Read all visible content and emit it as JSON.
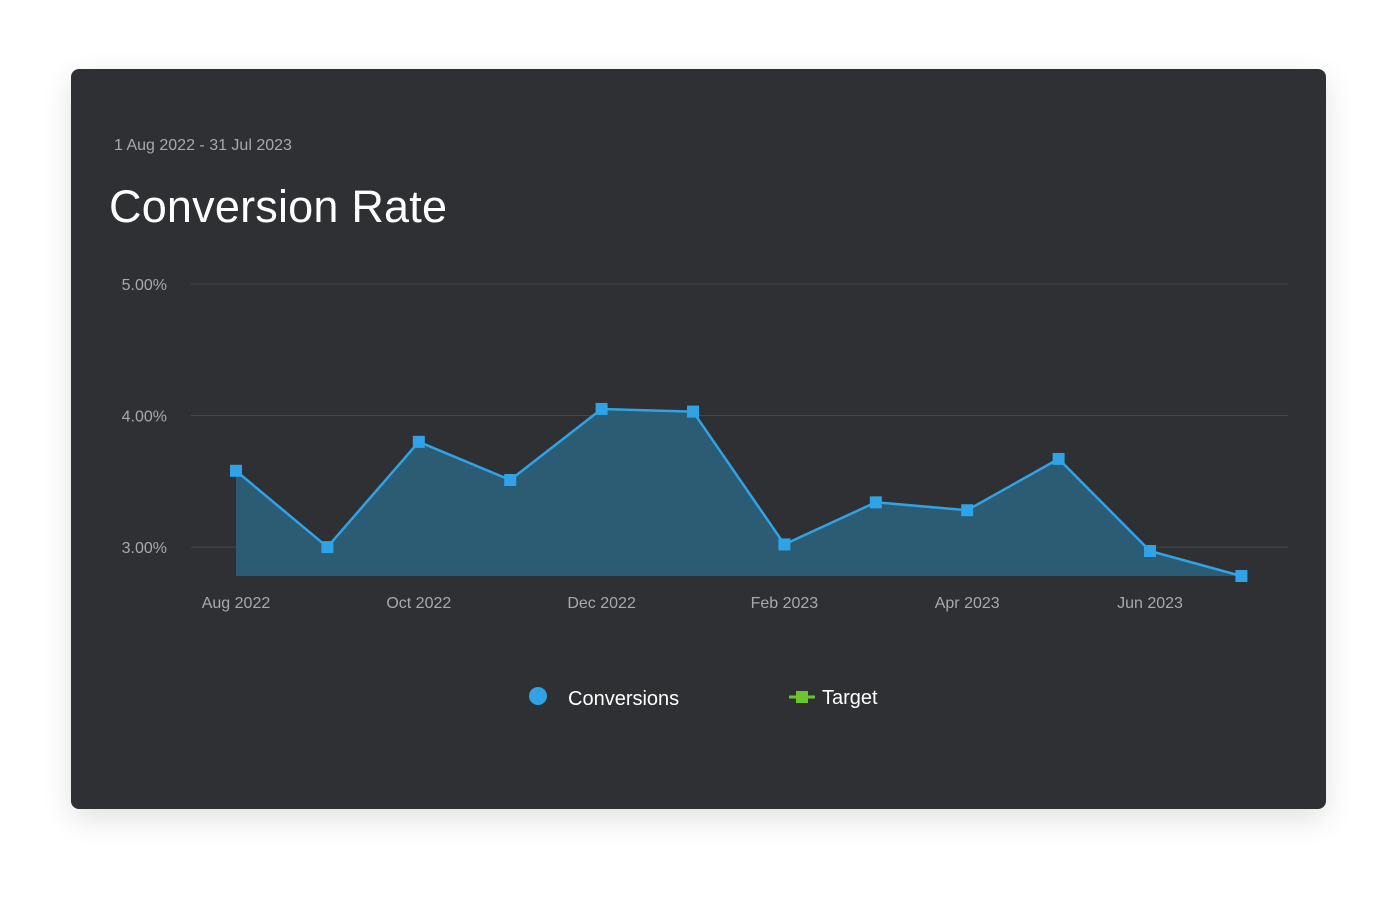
{
  "header": {
    "date_range": "1 Aug 2022 - 31 Jul 2023",
    "title": "Conversion Rate"
  },
  "colors": {
    "card_bg": "#2e3033",
    "series_line": "#2fa3e6",
    "series_fill": "#2c5e78",
    "target": "#6cc62b",
    "grid": "#43464a",
    "axis_text": "#a6a9ae"
  },
  "chart_data": {
    "type": "area",
    "title": "Conversion Rate",
    "x": [
      "Aug 2022",
      "Sep 2022",
      "Oct 2022",
      "Nov 2022",
      "Dec 2022",
      "Jan 2023",
      "Feb 2023",
      "Mar 2023",
      "Apr 2023",
      "May 2023",
      "Jun 2023",
      "Jul 2023"
    ],
    "x_tick_labels": [
      "Aug 2022",
      "Oct 2022",
      "Dec 2022",
      "Feb 2023",
      "Apr 2023",
      "Jun 2023"
    ],
    "y_tick_labels": [
      "5.00%",
      "4.00%",
      "3.00%"
    ],
    "y_ticks": [
      5.0,
      4.0,
      3.0
    ],
    "ylim": [
      2.78,
      5.0
    ],
    "y_unit": "%",
    "grid": true,
    "legend_position": "bottom-center",
    "series": [
      {
        "name": "Conversions",
        "marker": "square",
        "values": [
          3.58,
          3.0,
          3.8,
          3.51,
          4.05,
          4.03,
          3.02,
          3.34,
          3.28,
          3.67,
          2.97,
          2.78
        ]
      }
    ],
    "legend": [
      {
        "name": "Conversions",
        "symbol": "circle",
        "color": "#2fa3e6"
      },
      {
        "name": "Target",
        "symbol": "line-square",
        "color": "#6cc62b"
      }
    ]
  }
}
